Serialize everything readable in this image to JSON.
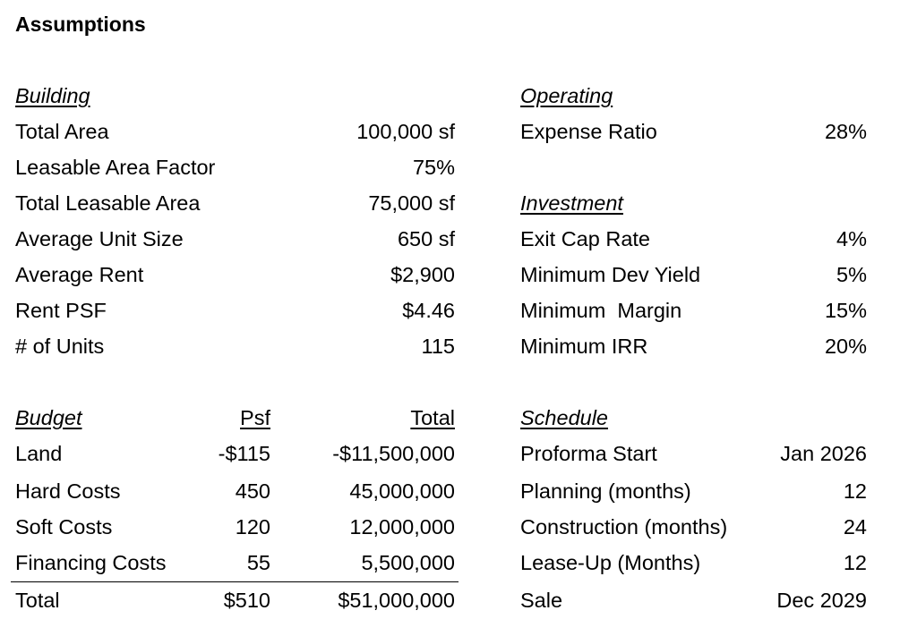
{
  "title": "Assumptions",
  "building": {
    "header": "Building",
    "rows": [
      {
        "label": "Total Area",
        "value": "100,000 sf"
      },
      {
        "label": "Leasable Area Factor",
        "value": "75%"
      },
      {
        "label": "Total Leasable Area",
        "value": "75,000 sf"
      },
      {
        "label": "Average Unit Size",
        "value": "650 sf"
      },
      {
        "label": "Average Rent",
        "value": "$2,900"
      },
      {
        "label": "Rent PSF",
        "value": "$4.46"
      },
      {
        "label": "# of Units",
        "value": "115"
      }
    ]
  },
  "operating": {
    "header": "Operating",
    "rows": [
      {
        "label": "Expense Ratio",
        "value": "28%"
      }
    ]
  },
  "investment": {
    "header": "Investment",
    "rows": [
      {
        "label": "Exit Cap Rate",
        "value": "4%"
      },
      {
        "label": "Minimum Dev Yield",
        "value": "5%"
      },
      {
        "label": "Minimum  Margin",
        "value": "15%"
      },
      {
        "label": "Minimum IRR",
        "value": "20%"
      }
    ]
  },
  "budget": {
    "header": "Budget",
    "col_psf": "Psf",
    "col_total": "Total",
    "rows": [
      {
        "label": "Land",
        "psf": "-$115",
        "total": "-$11,500,000"
      },
      {
        "label": "Hard Costs",
        "psf": "450",
        "total": "45,000,000"
      },
      {
        "label": "Soft Costs",
        "psf": "120",
        "total": "12,000,000"
      },
      {
        "label": "Financing Costs",
        "psf": "55",
        "total": "5,500,000"
      }
    ],
    "total_row": {
      "label": "Total",
      "psf": "$510",
      "total": "$51,000,000"
    }
  },
  "schedule": {
    "header": "Schedule",
    "rows": [
      {
        "label": "Proforma Start",
        "value": "Jan 2026"
      },
      {
        "label": "Planning (months)",
        "value": "12"
      },
      {
        "label": "Construction (months)",
        "value": "24"
      },
      {
        "label": "Lease-Up (Months)",
        "value": "12"
      },
      {
        "label": "Sale",
        "value": "Dec 2029"
      }
    ]
  }
}
